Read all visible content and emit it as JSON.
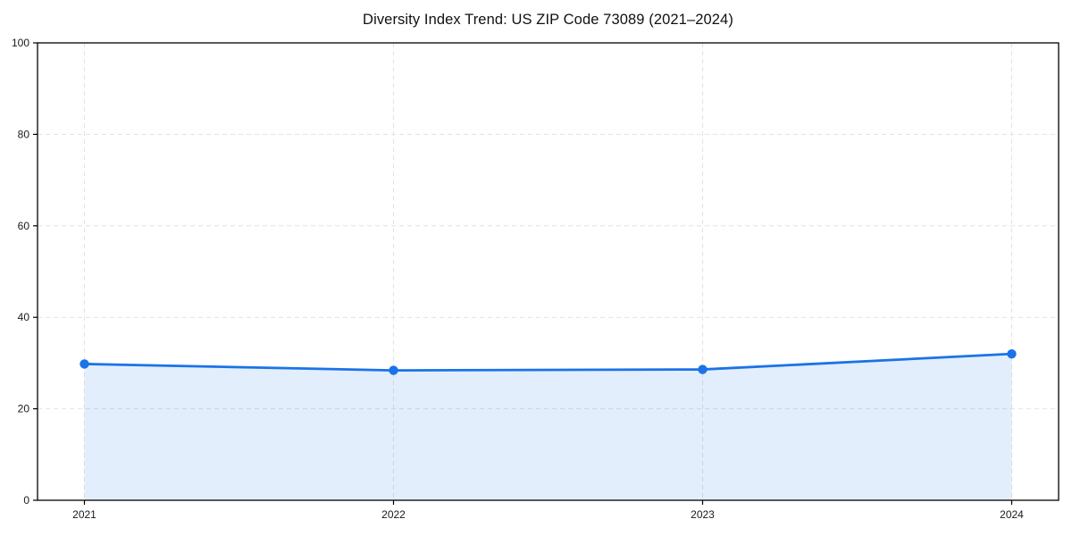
{
  "page": {
    "background": "#ffffff"
  },
  "chart_data": {
    "type": "area",
    "title": "Diversity Index Trend: US ZIP Code 73089 (2021–2024)",
    "categories": [
      "2021",
      "2022",
      "2023",
      "2024"
    ],
    "values": [
      29.8,
      28.4,
      28.6,
      32.0
    ],
    "series": [
      {
        "name": "Diversity Index",
        "values": [
          29.8,
          28.4,
          28.6,
          32.0
        ]
      }
    ],
    "xlabel": "",
    "ylabel": "",
    "ylim": [
      0,
      100
    ],
    "yticks": [
      0,
      20,
      40,
      60,
      80,
      100
    ],
    "grid": true,
    "grid_style": "dashed",
    "legend": false,
    "line_color": "#1a73e8",
    "marker_color": "#1a73e8",
    "fill_color": "#1a73e8",
    "fill_opacity": 0.12,
    "grid_color": "#e2e2e2",
    "axis_color": "#000000",
    "tick_label_color": "#1a1a1a"
  }
}
